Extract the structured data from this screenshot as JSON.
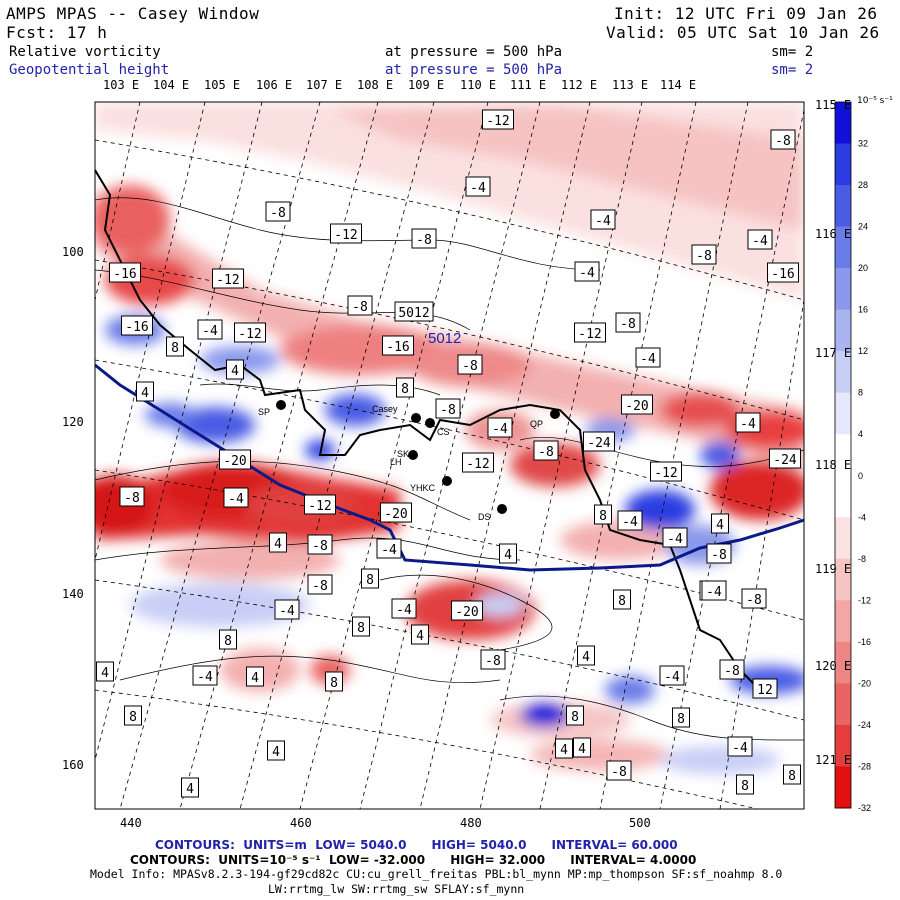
{
  "header": {
    "title": "AMPS MPAS -- Casey Window",
    "init": "Init: 12 UTC Fri 09 Jan 26",
    "fcst": "Fcst: 17 h",
    "valid": "Valid: 05 UTC Sat 10 Jan 26",
    "field1": {
      "name": "Relative vorticity",
      "level": "at pressure = 500 hPa",
      "sm": "sm= 2"
    },
    "field2": {
      "name": "Geopotential height",
      "level": "at pressure = 500 hPa",
      "sm": "sm= 2"
    }
  },
  "lon_labels_top": [
    "103 E",
    "104 E",
    "105 E",
    "106 E",
    "107 E",
    "108 E",
    "109 E",
    "110 E",
    "111 E",
    "112 E",
    "113 E",
    "114 E"
  ],
  "lon_labels_right": [
    "115 E",
    "116 E",
    "117 E",
    "118 E",
    "119 E",
    "120 E",
    "121 E"
  ],
  "y_ticks": [
    "100",
    "120",
    "140",
    "160"
  ],
  "x_ticks": [
    "440",
    "460",
    "480",
    "500"
  ],
  "colorbar": {
    "unit": "10⁻⁵ s⁻¹",
    "labels": [
      "32",
      "28",
      "24",
      "20",
      "16",
      "12",
      "8",
      "4",
      "0",
      "-4",
      "-8",
      "-12",
      "-16",
      "-20",
      "-24",
      "-28",
      "-32"
    ],
    "colors": [
      "#1010d8",
      "#2c3ce0",
      "#4a5ce4",
      "#6a7ce8",
      "#8b98ec",
      "#aab4f0",
      "#c8ceF6",
      "#e4e8fa",
      "#ffffff",
      "#ffffff",
      "#fbe2e2",
      "#f7c4c4",
      "#f2a6a6",
      "#ee8686",
      "#ea6464",
      "#e63e3e",
      "#e21010"
    ]
  },
  "geopotential_label": "5012",
  "stations": [
    "SP",
    "Casey",
    "LH",
    "CS",
    "SK",
    "YHKC",
    "DS",
    "QP"
  ],
  "contour_labels": [
    "-12",
    "-8",
    "-4",
    "-8",
    "-4",
    "-12",
    "-8",
    "-4",
    "-8",
    "-4",
    "-16",
    "-16",
    "-12",
    "-8",
    "5012",
    "-8",
    "-4",
    "-12",
    "-12",
    "-16",
    "-8",
    "-4",
    "4",
    "8",
    "-16",
    "8",
    "4",
    "-8",
    "-20",
    "-4",
    "-8",
    "-24",
    "-8",
    "-20",
    "-24",
    "-12",
    "-8",
    "-4",
    "-12",
    "-12",
    "-20",
    "-4",
    "8",
    "-4",
    "-8",
    "4",
    "-4",
    "-8",
    "4",
    "8",
    "-8",
    "-4",
    "-20",
    "-4",
    "8",
    "-8",
    "-4",
    "8",
    "4",
    "8",
    "-4",
    "4",
    "8",
    "-8",
    "4",
    "-4",
    "-8",
    "4",
    "8",
    "8",
    "12",
    "8",
    "4",
    "4",
    "-4",
    "4",
    "-8",
    "4",
    "8",
    "8",
    "-4",
    "-4",
    "4"
  ],
  "footer": {
    "line1": {
      "label": "CONTOURS:",
      "units": "UNITS=m",
      "low": "LOW=  5040.0",
      "high": "HIGH=  5040.0",
      "interval": "INTERVAL=  60.000"
    },
    "line2": {
      "label": "CONTOURS:",
      "units": "UNITS=10⁻⁵ s⁻¹",
      "low": "LOW= -32.000",
      "high": "HIGH=  32.000",
      "interval": "INTERVAL=  4.0000"
    },
    "model_info": "Model Info: MPASv8.2.3-194-gf29cd82c CU:cu_grell_freitas PBL:bl_mynn MP:mp_thompson SF:sf_noahmp 8.0",
    "model_info2": "LW:rrtmg_lw SW:rrtmg_sw SFLAY:sf_mynn"
  }
}
